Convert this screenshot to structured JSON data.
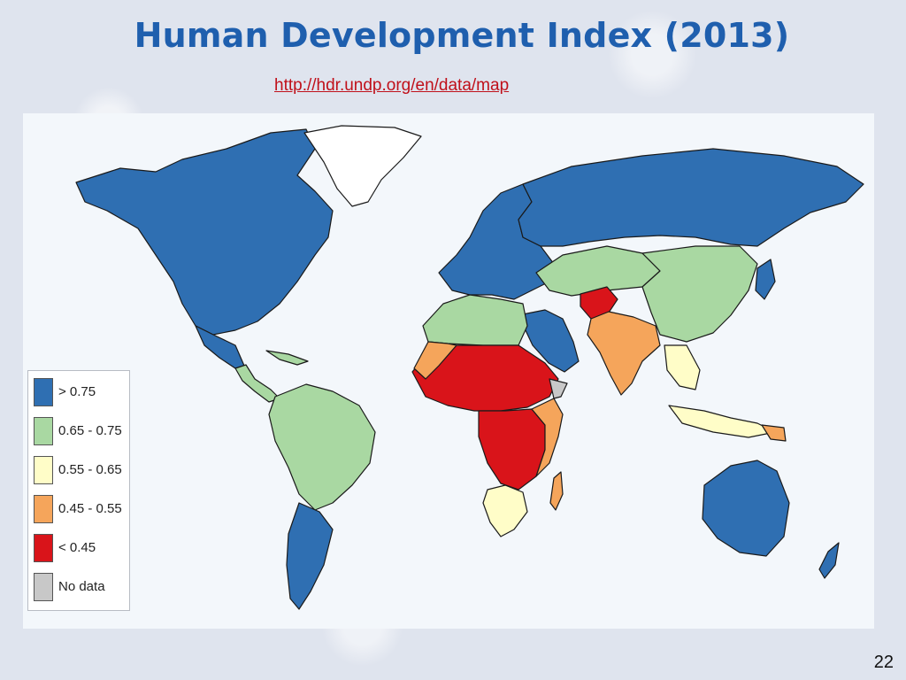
{
  "title": "Human Development Index (2013)",
  "source_url": "http://hdr.undp.org/en/data/map",
  "page_number": "22",
  "colors": {
    "ocean": "#f3f7fb",
    "border": "#1a1a1a"
  },
  "legend": [
    {
      "label": "> 0.75",
      "color": "#2f6fb2"
    },
    {
      "label": "0.65 - 0.75",
      "color": "#a9d8a2"
    },
    {
      "label": "0.55 - 0.65",
      "color": "#fffdc8"
    },
    {
      "label": "0.45 - 0.55",
      "color": "#f5a55b"
    },
    {
      "label": "< 0.45",
      "color": "#d9141a"
    },
    {
      "label": "No data",
      "color": "#c8c8c8"
    }
  ],
  "regions": [
    {
      "name": "north-america",
      "category": "> 0.75"
    },
    {
      "name": "greenland",
      "category": "No data"
    },
    {
      "name": "central-america",
      "category": "0.65 - 0.75"
    },
    {
      "name": "mexico",
      "category": "> 0.75"
    },
    {
      "name": "south-america-north",
      "category": "0.65 - 0.75"
    },
    {
      "name": "south-america-south",
      "category": "> 0.75"
    },
    {
      "name": "europe",
      "category": "> 0.75"
    },
    {
      "name": "russia",
      "category": "> 0.75"
    },
    {
      "name": "north-africa",
      "category": "0.65 - 0.75"
    },
    {
      "name": "sahel-west-africa",
      "category": "< 0.45"
    },
    {
      "name": "central-africa",
      "category": "< 0.45"
    },
    {
      "name": "southern-africa",
      "category": "0.55 - 0.65"
    },
    {
      "name": "middle-east",
      "category": "> 0.75"
    },
    {
      "name": "central-asia",
      "category": "0.65 - 0.75"
    },
    {
      "name": "south-asia",
      "category": "0.45 - 0.55"
    },
    {
      "name": "east-asia",
      "category": "0.65 - 0.75"
    },
    {
      "name": "southeast-asia",
      "category": "0.55 - 0.65"
    },
    {
      "name": "australia",
      "category": "> 0.75"
    }
  ]
}
